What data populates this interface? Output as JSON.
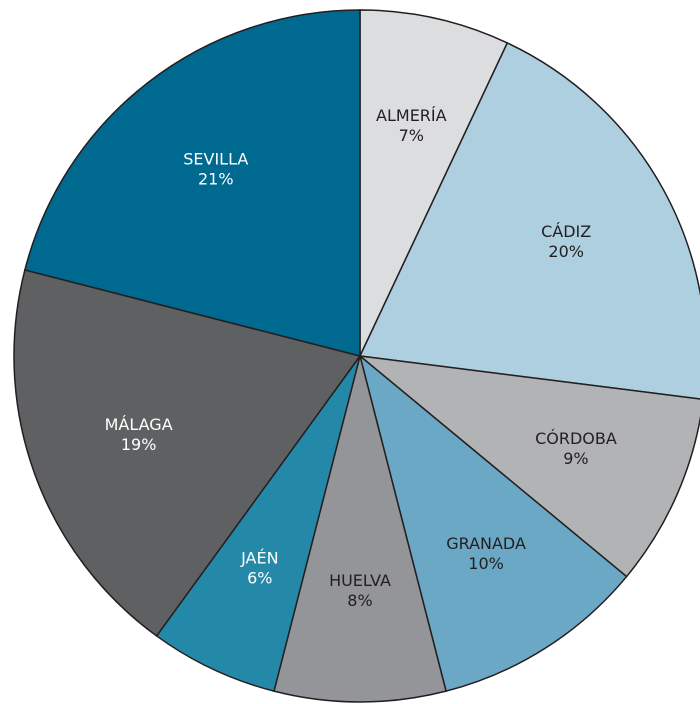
{
  "chart_data": {
    "type": "pie",
    "categories": [
      "ALMERÍA",
      "CÁDIZ",
      "CÓRDOBA",
      "GRANADA",
      "HUELVA",
      "JAÉN",
      "MÁLAGA",
      "SEVILLA"
    ],
    "values": [
      7,
      20,
      9,
      10,
      8,
      6,
      19,
      21
    ],
    "value_labels": [
      "7%",
      "20%",
      "9%",
      "10%",
      "8%",
      "6%",
      "19%",
      "21%"
    ],
    "colors": [
      "#dcdddf",
      "#aecfe0",
      "#b2b3b5",
      "#6aa8c5",
      "#939598",
      "#2489a8",
      "#5f6062",
      "#006990"
    ]
  }
}
